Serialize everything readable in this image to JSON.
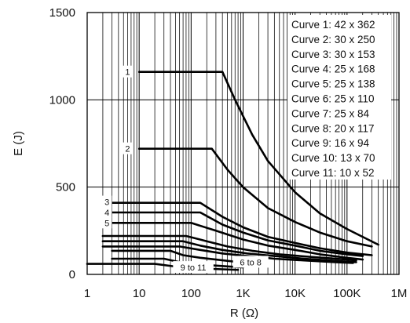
{
  "chart_data": {
    "type": "line",
    "xlabel": "R (Ω)",
    "ylabel": "E (J)",
    "x_scale": "log",
    "xlim": [
      1,
      1000000
    ],
    "ylim": [
      0,
      1500
    ],
    "x_ticks": [
      {
        "value": 1,
        "label": "1"
      },
      {
        "value": 10,
        "label": "10"
      },
      {
        "value": 100,
        "label": "100"
      },
      {
        "value": 1000,
        "label": "1K"
      },
      {
        "value": 10000,
        "label": "10K"
      },
      {
        "value": 100000,
        "label": "100K"
      },
      {
        "value": 1000000,
        "label": "1M"
      }
    ],
    "y_ticks": [
      {
        "value": 0,
        "label": "0"
      },
      {
        "value": 500,
        "label": "500"
      },
      {
        "value": 1000,
        "label": "1000"
      },
      {
        "value": 1500,
        "label": "1500"
      }
    ],
    "grid": true,
    "legend_position": "top-right",
    "legend": [
      "Curve 1: 42 x 362",
      "Curve 2: 30 x 250",
      "Curve 3: 30 x 153",
      "Curve 4: 25 x 168",
      "Curve 5: 25 x 138",
      "Curve 6: 25 x 110",
      "Curve 7: 25 x 84",
      "Curve 8: 20 x 117",
      "Curve 9: 16 x 94",
      "Curve 10: 13 x 70",
      "Curve 11: 10 x 52"
    ],
    "series": [
      {
        "label": "1",
        "points": [
          [
            10,
            1160
          ],
          [
            400,
            1160
          ],
          [
            700,
            1000
          ],
          [
            1500,
            800
          ],
          [
            3000,
            650
          ],
          [
            10000,
            470
          ],
          [
            30000,
            350
          ],
          [
            100000,
            260
          ],
          [
            400000,
            170
          ]
        ]
      },
      {
        "label": "2",
        "points": [
          [
            10,
            720
          ],
          [
            250,
            720
          ],
          [
            500,
            600
          ],
          [
            1000,
            500
          ],
          [
            3000,
            380
          ],
          [
            10000,
            300
          ],
          [
            30000,
            240
          ],
          [
            100000,
            190
          ],
          [
            300000,
            160
          ]
        ]
      },
      {
        "label": "3",
        "points": [
          [
            3,
            410
          ],
          [
            150,
            410
          ],
          [
            400,
            330
          ],
          [
            1000,
            270
          ],
          [
            3000,
            215
          ],
          [
            10000,
            180
          ],
          [
            30000,
            150
          ],
          [
            100000,
            125
          ],
          [
            300000,
            110
          ]
        ]
      },
      {
        "label": "4",
        "points": [
          [
            3,
            355
          ],
          [
            150,
            355
          ],
          [
            400,
            285
          ],
          [
            1000,
            240
          ],
          [
            3000,
            195
          ],
          [
            10000,
            165
          ],
          [
            30000,
            135
          ],
          [
            100000,
            115
          ],
          [
            200000,
            105
          ]
        ]
      },
      {
        "label": "5",
        "points": [
          [
            3,
            295
          ],
          [
            100,
            295
          ],
          [
            300,
            250
          ],
          [
            1000,
            200
          ],
          [
            3000,
            165
          ],
          [
            10000,
            140
          ],
          [
            30000,
            115
          ],
          [
            100000,
            95
          ],
          [
            200000,
            85
          ]
        ]
      },
      {
        "label": "6",
        "points": [
          [
            2,
            220
          ],
          [
            80,
            220
          ],
          [
            200,
            190
          ],
          [
            500,
            160
          ],
          [
            1500,
            135
          ],
          [
            5000,
            115
          ],
          [
            20000,
            100
          ],
          [
            100000,
            85
          ],
          [
            150000,
            80
          ]
        ]
      },
      {
        "label": "7",
        "points": [
          [
            2,
            190
          ],
          [
            70,
            190
          ],
          [
            150,
            165
          ],
          [
            400,
            140
          ],
          [
            1200,
            120
          ],
          [
            4000,
            105
          ],
          [
            15000,
            90
          ],
          [
            80000,
            75
          ],
          [
            150000,
            70
          ]
        ]
      },
      {
        "label": "8",
        "points": [
          [
            2,
            160
          ],
          [
            60,
            160
          ],
          [
            150,
            140
          ],
          [
            400,
            120
          ],
          [
            1200,
            105
          ],
          [
            4000,
            90
          ],
          [
            15000,
            80
          ],
          [
            60000,
            70
          ],
          [
            130000,
            65
          ]
        ]
      },
      {
        "label": "9",
        "points": [
          [
            3,
            135
          ],
          [
            40,
            135
          ],
          [
            70,
            110
          ],
          [
            150,
            95
          ],
          [
            300,
            85
          ],
          [
            600,
            75
          ],
          [
            1200,
            65
          ]
        ]
      },
      {
        "label": "10",
        "points": [
          [
            3,
            90
          ],
          [
            30,
            90
          ],
          [
            60,
            70
          ],
          [
            120,
            60
          ],
          [
            250,
            52
          ],
          [
            500,
            46
          ],
          [
            1000,
            40
          ]
        ]
      },
      {
        "label": "11",
        "points": [
          [
            1,
            60
          ],
          [
            20,
            60
          ],
          [
            50,
            45
          ],
          [
            100,
            38
          ],
          [
            200,
            33
          ],
          [
            400,
            29
          ],
          [
            800,
            26
          ]
        ]
      }
    ],
    "curve_labels": [
      {
        "text": "1",
        "x": 6,
        "y": 1160
      },
      {
        "text": "2",
        "x": 6,
        "y": 720
      },
      {
        "text": "3",
        "x": 2.4,
        "y": 415
      },
      {
        "text": "4",
        "x": 2.4,
        "y": 355
      },
      {
        "text": "5",
        "x": 2.4,
        "y": 295
      },
      {
        "text": "9 to 11",
        "x": 110,
        "y": 40
      },
      {
        "text": "6 to 8",
        "x": 1400,
        "y": 70
      }
    ]
  }
}
